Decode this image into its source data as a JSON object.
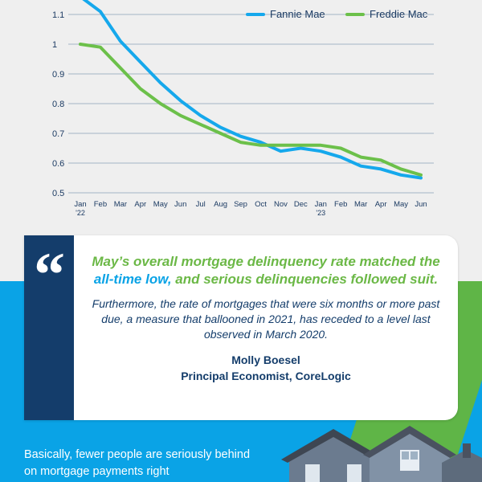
{
  "chart_data": {
    "type": "line",
    "x": [
      "Jan '22",
      "Feb",
      "Mar",
      "Apr",
      "May",
      "Jun",
      "Jul",
      "Aug",
      "Sep",
      "Oct",
      "Nov",
      "Dec",
      "Jan '23",
      "Feb",
      "Mar",
      "Apr",
      "May",
      "Jun"
    ],
    "tick_labels": [
      [
        "Jan",
        "'22"
      ],
      [
        "Feb"
      ],
      [
        "Mar"
      ],
      [
        "Apr"
      ],
      [
        "May"
      ],
      [
        "Jun"
      ],
      [
        "Jul"
      ],
      [
        "Aug"
      ],
      [
        "Sep"
      ],
      [
        "Oct"
      ],
      [
        "Nov"
      ],
      [
        "Dec"
      ],
      [
        "Jan",
        "'23"
      ],
      [
        "Feb"
      ],
      [
        "Mar"
      ],
      [
        "Apr"
      ],
      [
        "May"
      ],
      [
        "Jun"
      ]
    ],
    "yticks": [
      "0.5",
      "0.6",
      "0.7",
      "0.8",
      "0.9",
      "1",
      "1.1"
    ],
    "ylim": [
      0.5,
      1.1
    ],
    "grid": true,
    "legend_position": "top-right",
    "series": [
      {
        "name": "Fannie Mae",
        "color": "#15a8ec",
        "values": [
          1.16,
          1.11,
          1.01,
          0.94,
          0.87,
          0.81,
          0.76,
          0.72,
          0.69,
          0.67,
          0.64,
          0.65,
          0.64,
          0.62,
          0.59,
          0.58,
          0.56,
          0.55
        ]
      },
      {
        "name": "Freddie Mac",
        "color": "#6cc04a",
        "values": [
          1.0,
          0.99,
          0.92,
          0.85,
          0.8,
          0.76,
          0.73,
          0.7,
          0.67,
          0.66,
          0.66,
          0.66,
          0.66,
          0.65,
          0.62,
          0.61,
          0.58,
          0.56
        ]
      }
    ]
  },
  "quote": {
    "mark": "“",
    "headline_before": "May’s overall mortgage delinquency rate matched the ",
    "headline_accent": "all-time low,",
    "headline_after": " and serious delinquencies followed suit.",
    "body": "Furthermore, the rate of mortgages that were six months or more past due, a measure that ballooned in 2021, has receded to a level last observed in March 2020.",
    "author_name": "Molly Boesel",
    "author_title": "Principal Economist, CoreLogic"
  },
  "footer": {
    "text": "Basically, fewer people are seriously behind on mortgage payments right"
  },
  "colors": {
    "navy": "#143d6b",
    "blue": "#0aa3e6",
    "green": "#6bb846"
  }
}
